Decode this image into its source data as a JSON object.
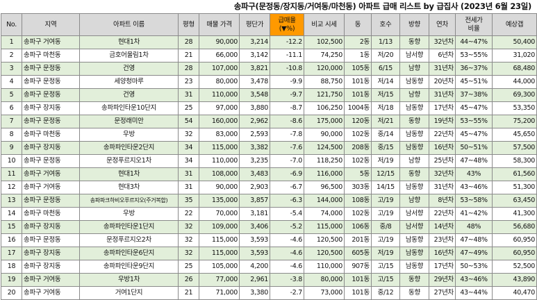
{
  "title": "송파구(문정동/장지동/거여동/마천동) 아파트 급매 리스트 by 급집사 (2023년 6월 23일)",
  "headers": {
    "no": "No.",
    "region": "지역",
    "apt": "아파트 이름",
    "pyeong": "평형",
    "price": "매물 가격",
    "per_pyeong": "평단가",
    "discount_l1": "급매율",
    "discount_l2": "(▼%)",
    "compare": "비교 시세",
    "dong": "동",
    "ho": "호수",
    "dir": "방향",
    "year": "연차",
    "jeonse_l1": "전세가",
    "jeonse_l2": "비율",
    "cost": "예상갭"
  },
  "rows": [
    {
      "no": "1",
      "region": "송파구 거여동",
      "apt": "현대1차",
      "pyeong": "28",
      "price": "90,000",
      "per_pyeong": "3,214",
      "discount": "-12.2",
      "compare": "102,500",
      "dong": "2동",
      "ho": "1/13",
      "dir": "동향",
      "year": "32년차",
      "jeonse": "44~47%",
      "cost": "50,400"
    },
    {
      "no": "2",
      "region": "송파구 마천동",
      "apt": "금호어울림1차",
      "pyeong": "21",
      "price": "66,000",
      "per_pyeong": "3,142",
      "discount": "-11.1",
      "compare": "74,250",
      "dong": "1동",
      "ho": "저/20",
      "dir": "남서향",
      "year": "6년차",
      "jeonse": "53~55%",
      "cost": "31,020"
    },
    {
      "no": "3",
      "region": "송파구 문정동",
      "apt": "건영",
      "pyeong": "28",
      "price": "107,000",
      "per_pyeong": "3,821",
      "discount": "-10.8",
      "compare": "120,000",
      "dong": "105동",
      "ho": "6/15",
      "dir": "남향",
      "year": "31년차",
      "jeonse": "36~37%",
      "cost": "68,480"
    },
    {
      "no": "4",
      "region": "송파구 문정동",
      "apt": "세양청마루",
      "pyeong": "23",
      "price": "80,000",
      "per_pyeong": "3,478",
      "discount": "-9.9",
      "compare": "88,750",
      "dong": "101동",
      "ho": "저/14",
      "dir": "남동향",
      "year": "20년차",
      "jeonse": "45~51%",
      "cost": "44,000"
    },
    {
      "no": "5",
      "region": "송파구 문정동",
      "apt": "건영",
      "pyeong": "31",
      "price": "110,000",
      "per_pyeong": "3,548",
      "discount": "-9.7",
      "compare": "121,750",
      "dong": "101동",
      "ho": "저/15",
      "dir": "남향",
      "year": "31년차",
      "jeonse": "37~38%",
      "cost": "69,300"
    },
    {
      "no": "6",
      "region": "송파구 장지동",
      "apt": "송파파인타운10단지",
      "pyeong": "25",
      "price": "97,000",
      "per_pyeong": "3,880",
      "discount": "-8.7",
      "compare": "106,250",
      "dong": "1004동",
      "ho": "저/18",
      "dir": "남동향",
      "year": "17년차",
      "jeonse": "45~47%",
      "cost": "53,350"
    },
    {
      "no": "7",
      "region": "송파구 문정동",
      "apt": "문정래미안",
      "pyeong": "54",
      "price": "160,000",
      "per_pyeong": "2,962",
      "discount": "-8.6",
      "compare": "175,000",
      "dong": "120동",
      "ho": "저/21",
      "dir": "동향",
      "year": "19년차",
      "jeonse": "53~55%",
      "cost": "75,200"
    },
    {
      "no": "8",
      "region": "송파구 마천동",
      "apt": "우방",
      "pyeong": "32",
      "price": "83,000",
      "per_pyeong": "2,593",
      "discount": "-7.8",
      "compare": "90,000",
      "dong": "102동",
      "ho": "중/14",
      "dir": "남동향",
      "year": "22년차",
      "jeonse": "45~47%",
      "cost": "45,650"
    },
    {
      "no": "9",
      "region": "송파구 장지동",
      "apt": "송파파인타운2단지",
      "pyeong": "34",
      "price": "115,000",
      "per_pyeong": "3,382",
      "discount": "-7.6",
      "compare": "124,500",
      "dong": "208동",
      "ho": "중/15",
      "dir": "남동향",
      "year": "16년차",
      "jeonse": "50~51%",
      "cost": "57,500"
    },
    {
      "no": "10",
      "region": "송파구 문정동",
      "apt": "문정푸르지오1차",
      "pyeong": "34",
      "price": "110,000",
      "per_pyeong": "3,235",
      "discount": "-7.0",
      "compare": "118,250",
      "dong": "102동",
      "ho": "저/19",
      "dir": "남향",
      "year": "25년차",
      "jeonse": "47~48%",
      "cost": "58,300"
    },
    {
      "no": "11",
      "region": "송파구 거여동",
      "apt": "현대1차",
      "pyeong": "31",
      "price": "108,000",
      "per_pyeong": "3,483",
      "discount": "-6.9",
      "compare": "116,000",
      "dong": "5동",
      "ho": "12/15",
      "dir": "동향",
      "year": "32년차",
      "jeonse": "43%",
      "cost": "61,560"
    },
    {
      "no": "12",
      "region": "송파구 거여동",
      "apt": "현대3차",
      "pyeong": "31",
      "price": "90,000",
      "per_pyeong": "2,903",
      "discount": "-6.7",
      "compare": "96,500",
      "dong": "303동",
      "ho": "14/15",
      "dir": "남동향",
      "year": "31년차",
      "jeonse": "43~46%",
      "cost": "51,300"
    },
    {
      "no": "13",
      "region": "송파구 문정동",
      "apt": "송파파크하비오푸르지오(주거복합)",
      "pyeong": "35",
      "price": "135,000",
      "per_pyeong": "3,857",
      "discount": "-6.3",
      "compare": "144,000",
      "dong": "108동",
      "ho": "고/19",
      "dir": "남향",
      "year": "8년차",
      "jeonse": "53~58%",
      "cost": "63,450"
    },
    {
      "no": "14",
      "region": "송파구 마천동",
      "apt": "우방",
      "pyeong": "22",
      "price": "70,000",
      "per_pyeong": "3,181",
      "discount": "-5.4",
      "compare": "74,000",
      "dong": "102동",
      "ho": "고/19",
      "dir": "남서향",
      "year": "22년차",
      "jeonse": "41~42%",
      "cost": "41,300"
    },
    {
      "no": "15",
      "region": "송파구 장지동",
      "apt": "송파파인타운1단지",
      "pyeong": "32",
      "price": "109,000",
      "per_pyeong": "3,406",
      "discount": "-5.2",
      "compare": "115,000",
      "dong": "106동",
      "ho": "중/8",
      "dir": "남서향",
      "year": "14년차",
      "jeonse": "48%",
      "cost": "56,680"
    },
    {
      "no": "16",
      "region": "송파구 문정동",
      "apt": "문정푸르지오2차",
      "pyeong": "32",
      "price": "115,000",
      "per_pyeong": "3,593",
      "discount": "-4.6",
      "compare": "120,500",
      "dong": "201동",
      "ho": "고/19",
      "dir": "남동향",
      "year": "23년차",
      "jeonse": "47~48%",
      "cost": "60,950"
    },
    {
      "no": "17",
      "region": "송파구 장지동",
      "apt": "송파파인타운6단지",
      "pyeong": "32",
      "price": "115,000",
      "per_pyeong": "3,593",
      "discount": "-4.6",
      "compare": "120,500",
      "dong": "605동",
      "ho": "저/19",
      "dir": "남동향",
      "year": "16년차",
      "jeonse": "47~49%",
      "cost": "60,950"
    },
    {
      "no": "18",
      "region": "송파구 장지동",
      "apt": "송파파인타운9단지",
      "pyeong": "25",
      "price": "105,000",
      "per_pyeong": "4,200",
      "discount": "-4.6",
      "compare": "110,000",
      "dong": "907동",
      "ho": "고/15",
      "dir": "남동향",
      "year": "17년차",
      "jeonse": "50~53%",
      "cost": "52,500"
    },
    {
      "no": "19",
      "region": "송파구 거여동",
      "apt": "우방1차",
      "pyeong": "26",
      "price": "77,000",
      "per_pyeong": "2,961",
      "discount": "-3.8",
      "compare": "80,000",
      "dong": "101동",
      "ho": "고/15",
      "dir": "동향",
      "year": "29년차",
      "jeonse": "43~46%",
      "cost": "43,890"
    },
    {
      "no": "20",
      "region": "송파구 거여동",
      "apt": "거여1단지",
      "pyeong": "21",
      "price": "71,000",
      "per_pyeong": "3,380",
      "discount": "-2.7",
      "compare": "73,000",
      "dong": "101동",
      "ho": "중/12",
      "dir": "동향",
      "year": "27년차",
      "jeonse": "43~44%",
      "cost": "40,470"
    }
  ]
}
